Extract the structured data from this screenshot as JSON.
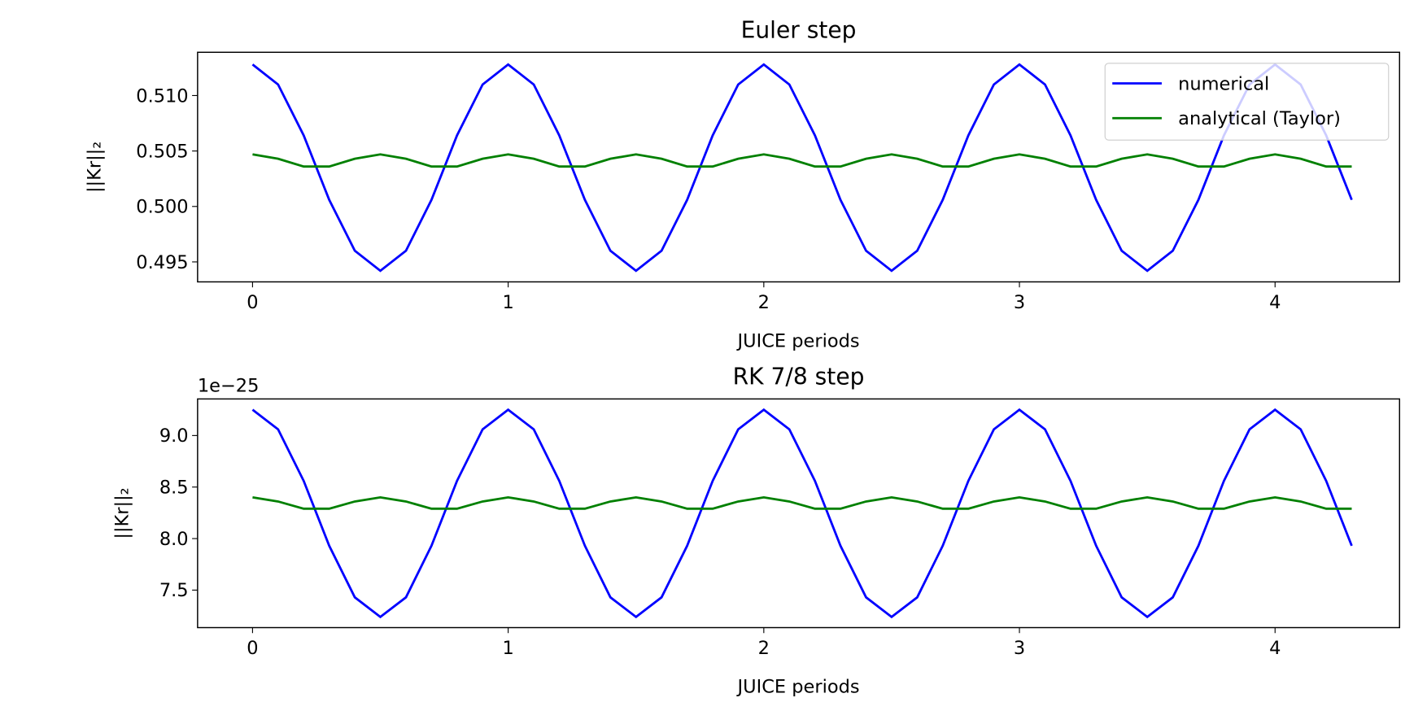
{
  "chart_data": [
    {
      "type": "line",
      "title": "Euler step",
      "x_label": "JUICE periods",
      "y_label": "||Kr||₂",
      "x": [
        0,
        0.1,
        0.2,
        0.3,
        0.4,
        0.5,
        0.6,
        0.7,
        0.8,
        0.9,
        1,
        1.1,
        1.2,
        1.3,
        1.4,
        1.5,
        1.6,
        1.7,
        1.8,
        1.9,
        2,
        2.1,
        2.2,
        2.3,
        2.4,
        2.5,
        2.6,
        2.7,
        2.8,
        2.9,
        3,
        3.1,
        3.2,
        3.3,
        3.4,
        3.5,
        3.6,
        3.7,
        3.8,
        3.9,
        4,
        4.1,
        4.2,
        4.3
      ],
      "series": [
        {
          "name": "numerical",
          "color": "#0000ff",
          "values": [
            0.5128,
            0.511,
            0.5064,
            0.5006,
            0.496,
            0.4942,
            0.496,
            0.5006,
            0.5064,
            0.511,
            0.5128,
            0.511,
            0.5064,
            0.5006,
            0.496,
            0.4942,
            0.496,
            0.5006,
            0.5064,
            0.511,
            0.5128,
            0.511,
            0.5064,
            0.5006,
            0.496,
            0.4942,
            0.496,
            0.5006,
            0.5064,
            0.511,
            0.5128,
            0.511,
            0.5064,
            0.5006,
            0.496,
            0.4942,
            0.496,
            0.5006,
            0.5064,
            0.511,
            0.5128,
            0.511,
            0.5064,
            0.5006
          ]
        },
        {
          "name": "analytical (Taylor)",
          "color": "#008000",
          "values": [
            0.5047,
            0.5043,
            0.5036,
            0.5036,
            0.5043,
            0.5047,
            0.5043,
            0.5036,
            0.5036,
            0.5043,
            0.5047,
            0.5043,
            0.5036,
            0.5036,
            0.5043,
            0.5047,
            0.5043,
            0.5036,
            0.5036,
            0.5043,
            0.5047,
            0.5043,
            0.5036,
            0.5036,
            0.5043,
            0.5047,
            0.5043,
            0.5036,
            0.5036,
            0.5043,
            0.5047,
            0.5043,
            0.5036,
            0.5036,
            0.5043,
            0.5047,
            0.5043,
            0.5036,
            0.5036,
            0.5043,
            0.5047,
            0.5043,
            0.5036,
            0.5036
          ]
        }
      ],
      "xlim": [
        -0.215,
        4.487
      ],
      "xticks": [
        0,
        1,
        2,
        3,
        4
      ],
      "ylim": [
        0.4932,
        0.5139
      ],
      "yticks": [
        {
          "value": 0.495,
          "label": "0.495"
        },
        {
          "value": 0.5,
          "label": "0.500"
        },
        {
          "value": 0.505,
          "label": "0.505"
        },
        {
          "value": 0.51,
          "label": "0.510"
        }
      ],
      "legend": "upper right"
    },
    {
      "type": "line",
      "title": "RK 7/8 step",
      "x_label": "JUICE periods",
      "y_label": "||Kr||₂",
      "y_offset_label": "1e−25",
      "x": [
        0,
        0.1,
        0.2,
        0.3,
        0.4,
        0.5,
        0.6,
        0.7,
        0.8,
        0.9,
        1,
        1.1,
        1.2,
        1.3,
        1.4,
        1.5,
        1.6,
        1.7,
        1.8,
        1.9,
        2,
        2.1,
        2.2,
        2.3,
        2.4,
        2.5,
        2.6,
        2.7,
        2.8,
        2.9,
        3,
        3.1,
        3.2,
        3.3,
        3.4,
        3.5,
        3.6,
        3.7,
        3.8,
        3.9,
        4,
        4.1,
        4.2,
        4.3
      ],
      "series": [
        {
          "name": "numerical",
          "color": "#0000ff",
          "values": [
            9.25,
            9.06,
            8.56,
            7.93,
            7.43,
            7.24,
            7.43,
            7.93,
            8.56,
            9.06,
            9.25,
            9.06,
            8.56,
            7.93,
            7.43,
            7.24,
            7.43,
            7.93,
            8.56,
            9.06,
            9.25,
            9.06,
            8.56,
            7.93,
            7.43,
            7.24,
            7.43,
            7.93,
            8.56,
            9.06,
            9.25,
            9.06,
            8.56,
            7.93,
            7.43,
            7.24,
            7.43,
            7.93,
            8.56,
            9.06,
            9.25,
            9.06,
            8.56,
            7.93
          ]
        },
        {
          "name": "analytical (Taylor)",
          "color": "#008000",
          "values": [
            8.4,
            8.36,
            8.29,
            8.29,
            8.36,
            8.4,
            8.36,
            8.29,
            8.29,
            8.36,
            8.4,
            8.36,
            8.29,
            8.29,
            8.36,
            8.4,
            8.36,
            8.29,
            8.29,
            8.36,
            8.4,
            8.36,
            8.29,
            8.29,
            8.36,
            8.4,
            8.36,
            8.29,
            8.29,
            8.36,
            8.4,
            8.36,
            8.29,
            8.29,
            8.36,
            8.4,
            8.36,
            8.29,
            8.29,
            8.36,
            8.4,
            8.36,
            8.29,
            8.29
          ]
        }
      ],
      "xlim": [
        -0.215,
        4.487
      ],
      "xticks": [
        0,
        1,
        2,
        3,
        4
      ],
      "ylim": [
        7.136,
        9.355
      ],
      "yticks": [
        {
          "value": 7.5,
          "label": "7.5"
        },
        {
          "value": 8,
          "label": "8.0"
        },
        {
          "value": 8.5,
          "label": "8.5"
        },
        {
          "value": 9,
          "label": "9.0"
        }
      ]
    }
  ]
}
